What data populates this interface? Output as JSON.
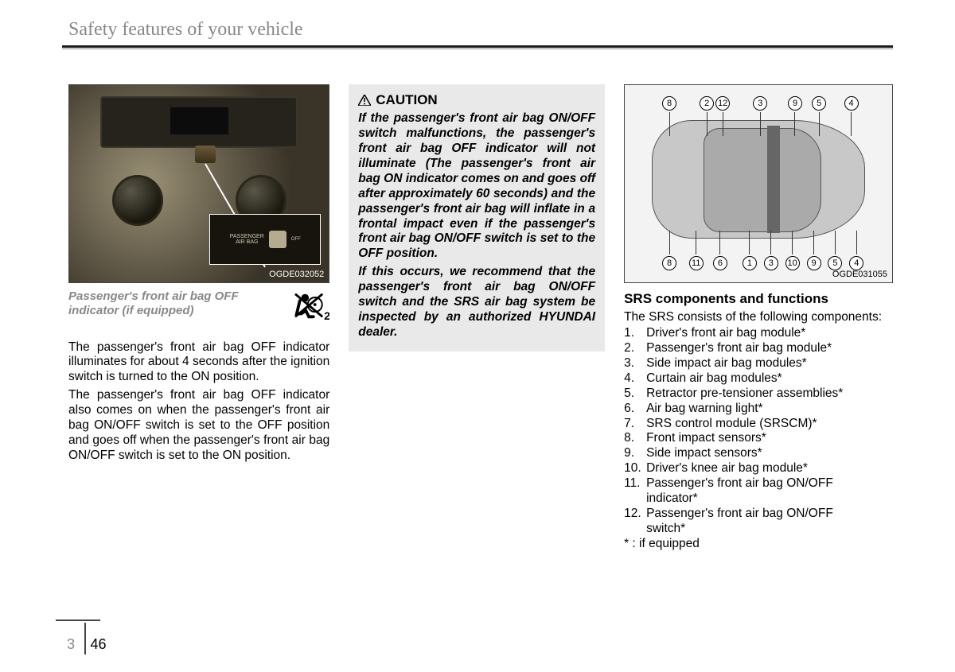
{
  "header": {
    "title": "Safety features of your vehicle"
  },
  "col1": {
    "figure_id": "OGDE032052",
    "inset_label": "PASSENGER\nAIR BAG",
    "inset_off": "OFF",
    "caption": "Passenger's front air bag OFF indicator (if equipped)",
    "icon_sub": "2",
    "para1": "The passenger's front air bag OFF indicator illuminates for about 4 seconds after the ignition switch is turned to the ON position.",
    "para2": "The passenger's front air bag OFF indicator also comes on when the passenger's front air bag ON/OFF switch is set to the OFF position and goes off when the  passenger's front air bag ON/OFF switch is set to the ON position."
  },
  "col2": {
    "caution_title": "CAUTION",
    "caution_p1": "If the passenger's front air bag ON/OFF switch malfunctions, the passenger's front air bag OFF indicator will not illuminate (The passenger's front air bag ON indicator comes on and goes off after approximately 60 seconds) and the passenger's front air bag will inflate in a frontal impact even if the passenger's front air bag ON/OFF switch is set to the OFF position.",
    "caution_p2": "If this occurs, we recommend that the passenger's front air bag ON/OFF switch and the SRS air bag system be inspected by an authorized HYUNDAI dealer."
  },
  "col3": {
    "figure_id": "OGDE031055",
    "diagram_numbers_top": [
      "8",
      "2",
      "12",
      "3",
      "9",
      "5",
      "4"
    ],
    "diagram_top_left_pct": [
      14,
      28,
      34,
      48,
      61,
      70,
      82
    ],
    "diagram_numbers_bottom": [
      "8",
      "11",
      "6",
      "1",
      "3",
      "10",
      "9",
      "5",
      "4"
    ],
    "diagram_bottom_left_pct": [
      14,
      24,
      33,
      44,
      52,
      60,
      68,
      76,
      84
    ],
    "heading": "SRS components and functions",
    "intro": "The SRS consists of the following components:",
    "items": [
      "Driver's front air bag module*",
      "Passenger's front air bag module*",
      "Side impact air bag modules*",
      "Curtain air bag modules*",
      "Retractor pre-tensioner assemblies*",
      "Air bag warning light*",
      "SRS control module (SRSCM)*",
      "Front impact sensors*",
      "Side impact sensors*",
      "Driver's knee air bag module*",
      "Passenger's front air bag ON/OFF indicator*",
      "Passenger's front air bag ON/OFF switch*"
    ],
    "footnote": "* : if equipped"
  },
  "footer": {
    "chapter": "3",
    "page": "46"
  }
}
